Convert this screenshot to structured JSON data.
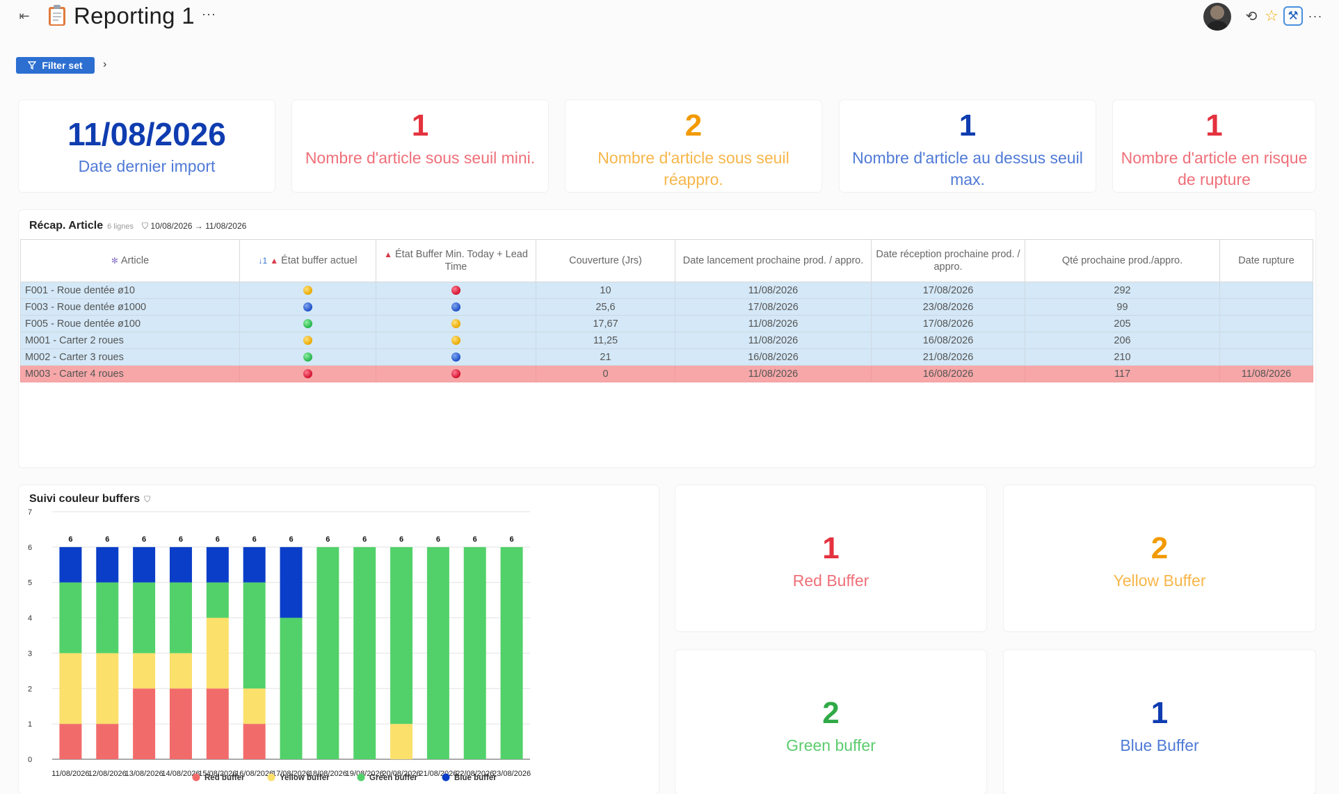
{
  "header": {
    "title": "Reporting 1",
    "more_label": "···",
    "filter_label": "Filter set",
    "chevron": "›"
  },
  "kpis": [
    {
      "value": "11/08/2026",
      "label": "Date dernier import",
      "color": "#0f3cb0",
      "label_color": "#4f7ad6"
    },
    {
      "value": "1",
      "label": "Nombre d'article sous seuil mini.",
      "color": "#e4323e",
      "label_color": "#ef6f79"
    },
    {
      "value": "2",
      "label": "Nombre d'article sous seuil réappro.",
      "color": "#f29a00",
      "label_color": "#f7b64a"
    },
    {
      "value": "1",
      "label": "Nombre d'article au dessus seuil max.",
      "color": "#0f3cb0",
      "label_color": "#4f7ad6"
    },
    {
      "value": "1",
      "label": "Nombre d'article en risque de rupture",
      "color": "#e4323e",
      "label_color": "#ef6f79"
    }
  ],
  "recap": {
    "title": "Récap. Article",
    "count": "6 lignes",
    "filter": "10/08/2026 → 11/08/2026",
    "columns": [
      "Article",
      "État buffer actuel",
      "État Buffer Min. Today + Lead Time",
      "Couverture (Jrs)",
      "Date lancement prochaine prod. / appro.",
      "Date réception prochaine prod. / appro.",
      "Qté prochaine prod./appro.",
      "Date rupture"
    ],
    "sort_mark": "↓1",
    "rows": [
      {
        "article": "F001 - Roue dentée ø10",
        "etat": "yellow",
        "etat_min": "red",
        "couverture": "10",
        "date_lancement": "11/08/2026",
        "date_reception": "17/08/2026",
        "qte": "292",
        "rupture": "",
        "style": "blue"
      },
      {
        "article": "F003 - Roue dentée ø1000",
        "etat": "blue",
        "etat_min": "blue",
        "couverture": "25,6",
        "date_lancement": "17/08/2026",
        "date_reception": "23/08/2026",
        "qte": "99",
        "rupture": "",
        "style": "blue"
      },
      {
        "article": "F005 - Roue dentée ø100",
        "etat": "green",
        "etat_min": "yellow",
        "couverture": "17,67",
        "date_lancement": "11/08/2026",
        "date_reception": "17/08/2026",
        "qte": "205",
        "rupture": "",
        "style": "blue"
      },
      {
        "article": "M001 - Carter 2 roues",
        "etat": "yellow",
        "etat_min": "yellow",
        "couverture": "11,25",
        "date_lancement": "11/08/2026",
        "date_reception": "16/08/2026",
        "qte": "206",
        "rupture": "",
        "style": "blue"
      },
      {
        "article": "M002 - Carter 3 roues",
        "etat": "green",
        "etat_min": "blue",
        "couverture": "21",
        "date_lancement": "16/08/2026",
        "date_reception": "21/08/2026",
        "qte": "210",
        "rupture": "",
        "style": "blue"
      },
      {
        "article": "M003 - Carter 4 roues",
        "etat": "red",
        "etat_min": "red",
        "couverture": "0",
        "date_lancement": "11/08/2026",
        "date_reception": "16/08/2026",
        "qte": "117",
        "rupture": "11/08/2026",
        "style": "red"
      }
    ]
  },
  "chart_data": {
    "type": "bar",
    "stacked": true,
    "title": "Suivi couleur buffers",
    "categories": [
      "11/08/2026",
      "12/08/2026",
      "13/08/2026",
      "14/08/2026",
      "15/08/2026",
      "16/08/2026",
      "17/08/2026",
      "18/08/2026",
      "19/08/2026",
      "20/08/2026",
      "21/08/2026",
      "22/08/2026",
      "23/08/2026"
    ],
    "series": [
      {
        "name": "Red buffer",
        "color": "#f26b6b",
        "values": [
          1,
          1,
          2,
          2,
          2,
          1,
          0,
          0,
          0,
          0,
          0,
          0,
          0
        ]
      },
      {
        "name": "Yellow buffer",
        "color": "#fbe06b",
        "values": [
          2,
          2,
          1,
          1,
          2,
          1,
          0,
          0,
          0,
          1,
          0,
          0,
          0
        ]
      },
      {
        "name": "Green buffer",
        "color": "#52d16a",
        "values": [
          2,
          2,
          2,
          2,
          1,
          3,
          4,
          6,
          6,
          5,
          6,
          6,
          6
        ]
      },
      {
        "name": "Blue buffer",
        "color": "#0a3ec8",
        "values": [
          1,
          1,
          1,
          1,
          1,
          1,
          2,
          0,
          0,
          0,
          0,
          0,
          0
        ]
      }
    ],
    "totals": [
      6,
      6,
      6,
      6,
      6,
      6,
      6,
      6,
      6,
      6,
      6,
      6,
      6
    ],
    "ylim": [
      0,
      7
    ],
    "yticks": [
      0,
      1,
      2,
      3,
      4,
      5,
      6,
      7
    ],
    "grid": true,
    "legend": "bottom"
  },
  "buffers": [
    {
      "value": "1",
      "label": "Red Buffer",
      "color": "#e4323e",
      "label_color": "#ef6f79"
    },
    {
      "value": "2",
      "label": "Yellow Buffer",
      "color": "#f29a00",
      "label_color": "#f7b64a"
    },
    {
      "value": "2",
      "label": "Green buffer",
      "color": "#2faa46",
      "label_color": "#5ccc6e"
    },
    {
      "value": "1",
      "label": "Blue Buffer",
      "color": "#0f3cb0",
      "label_color": "#4f7ad6"
    }
  ]
}
